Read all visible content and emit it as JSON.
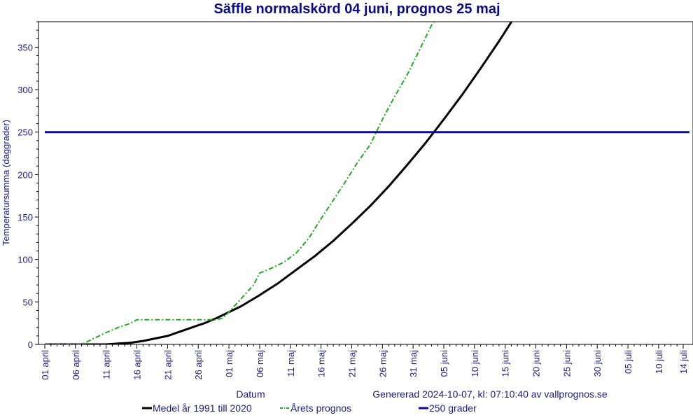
{
  "chart_data": {
    "type": "line",
    "title": "Säffle normalskörd 04 juni, prognos 25 maj",
    "ylabel": "Temperatursumma (daggrader)",
    "xlabel": "Datum",
    "generated": "Genererad 2024-10-07, kl: 07:10:40 av vallprognos.se",
    "ylim": [
      0,
      380
    ],
    "yticks": [
      0,
      50,
      100,
      150,
      200,
      250,
      300,
      350
    ],
    "xticks": [
      {
        "day": 0,
        "label": "01 april"
      },
      {
        "day": 5,
        "label": "06 april"
      },
      {
        "day": 10,
        "label": "11 april"
      },
      {
        "day": 15,
        "label": "16 april"
      },
      {
        "day": 20,
        "label": "21 april"
      },
      {
        "day": 25,
        "label": "26 april"
      },
      {
        "day": 30,
        "label": "01 maj"
      },
      {
        "day": 35,
        "label": "06 maj"
      },
      {
        "day": 40,
        "label": "11 maj"
      },
      {
        "day": 45,
        "label": "16 maj"
      },
      {
        "day": 50,
        "label": "21 maj"
      },
      {
        "day": 55,
        "label": "26 maj"
      },
      {
        "day": 60,
        "label": "31 maj"
      },
      {
        "day": 65,
        "label": "05 juni"
      },
      {
        "day": 70,
        "label": "10 juni"
      },
      {
        "day": 75,
        "label": "15 juni"
      },
      {
        "day": 80,
        "label": "20 juni"
      },
      {
        "day": 85,
        "label": "25 juni"
      },
      {
        "day": 90,
        "label": "30 juni"
      },
      {
        "day": 95,
        "label": "05 juli"
      },
      {
        "day": 100,
        "label": "10 juli"
      },
      {
        "day": 104,
        "label": "14 juli"
      }
    ],
    "xlim": [
      0,
      105
    ],
    "series": [
      {
        "name": "Medel år 1991 till 2020",
        "color": "#000000",
        "style": "solid",
        "x": [
          0,
          5,
          10,
          12,
          14,
          16,
          18,
          20,
          22,
          24,
          26,
          28,
          30,
          32,
          35,
          38,
          41,
          44,
          47,
          50,
          53,
          56,
          59,
          62,
          65,
          68,
          71,
          74,
          77,
          80.3
        ],
        "y": [
          0,
          0,
          0,
          1,
          2,
          4,
          7,
          10,
          15,
          20,
          25,
          31,
          38,
          45,
          58,
          72,
          88,
          104,
          122,
          142,
          163,
          186,
          211,
          237,
          265,
          294,
          325,
          357,
          391,
          430
        ]
      },
      {
        "name": "Årets prognos",
        "color": "#22aa22",
        "style": "dashdot",
        "x": [
          0,
          6,
          8,
          10,
          12,
          14,
          15,
          20,
          25,
          28,
          29,
          30,
          32,
          34,
          35,
          37,
          39,
          41,
          43,
          45,
          47,
          49,
          51,
          53,
          55,
          57,
          59,
          61,
          63,
          65,
          67
        ],
        "y": [
          0,
          0,
          7,
          14,
          20,
          25,
          29,
          29,
          29,
          29,
          31,
          38,
          54,
          70,
          84,
          90,
          97,
          108,
          125,
          148,
          170,
          192,
          215,
          235,
          265,
          292,
          317,
          346,
          376,
          395,
          412
        ]
      },
      {
        "name": "250 grader",
        "color": "#0a0aa0",
        "style": "solid",
        "x": [
          0,
          105
        ],
        "y": [
          250,
          250
        ]
      }
    ]
  },
  "legend": [
    {
      "label": "Medel år 1991 till 2020",
      "color": "#000000",
      "style": "solid"
    },
    {
      "label": "Årets prognos",
      "color": "#22aa22",
      "style": "dashdot"
    },
    {
      "label": "250 grader",
      "color": "#0a0aa0",
      "style": "solid"
    }
  ]
}
